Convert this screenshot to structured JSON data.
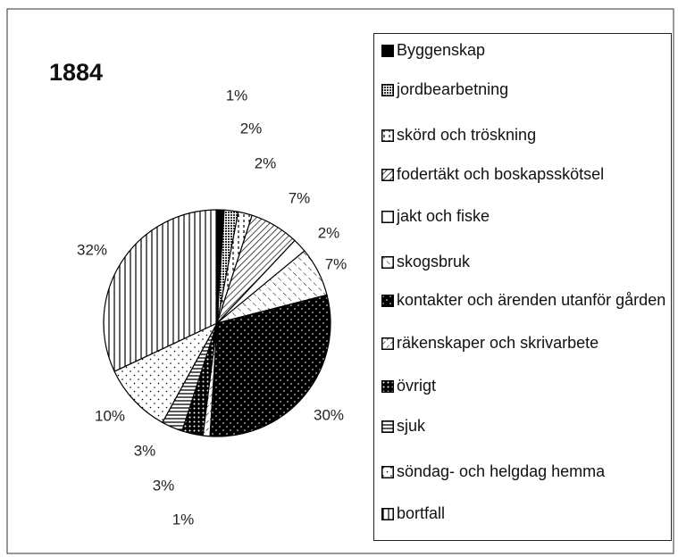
{
  "chart_data": {
    "type": "pie",
    "title": "1884",
    "categories": [
      "Byggenskap",
      "jordbearbetning",
      "skörd och tröskning",
      "fodertäkt och boskapsskötsel",
      "jakt och fiske",
      "skogsbruk",
      "kontakter och ärenden utanför gården",
      "räkenskaper och skrivarbete",
      "övrigt",
      "sjuk",
      "söndag- och helgdag hemma",
      "bortfall"
    ],
    "values": [
      1,
      2,
      2,
      7,
      2,
      7,
      30,
      1,
      3,
      3,
      10,
      32
    ],
    "value_labels": [
      "1%",
      "2%",
      "2%",
      "7%",
      "2%",
      "7%",
      "30%",
      "1%",
      "3%",
      "3%",
      "10%",
      "32%"
    ]
  }
}
